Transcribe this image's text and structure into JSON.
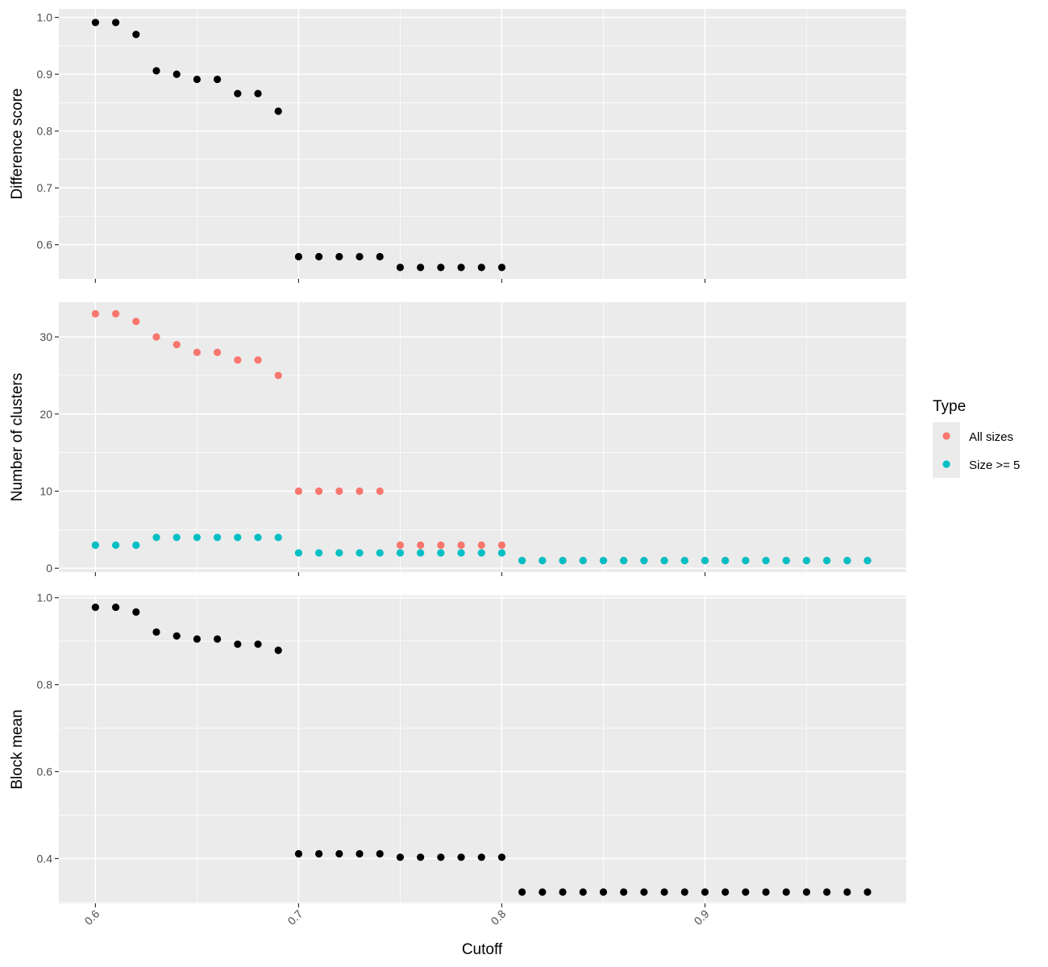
{
  "chart_data": {
    "type": "scatter",
    "xlabel": "Cutoff",
    "x_ticks": [
      "0.6",
      "0.7",
      "0.8",
      "0.9"
    ],
    "x_tick_values": [
      0.6,
      0.7,
      0.8,
      0.9
    ],
    "xlim": [
      0.582,
      0.999
    ],
    "colors": {
      "panel_bg": "#ebebeb",
      "grid": "#ffffff",
      "point_default": "#000000",
      "all_sizes": "#f8766d",
      "size_ge_5": "#00bfc4"
    },
    "legend": {
      "title": "Type",
      "position": "right",
      "items": [
        {
          "label": "All sizes",
          "color": "#f8766d"
        },
        {
          "label": "Size >= 5",
          "color": "#00bfc4"
        }
      ]
    },
    "panels": [
      {
        "ylabel": "Difference score",
        "ylim": [
          0.54,
          1.015
        ],
        "y_ticks": [
          "0.6",
          "0.7",
          "0.8",
          "0.9",
          "1.0"
        ],
        "y_tick_values": [
          0.6,
          0.7,
          0.8,
          0.9,
          1.0
        ],
        "y_minor": [
          0.65,
          0.75,
          0.85,
          0.95
        ],
        "series": [
          {
            "color": "#000000",
            "x": [
              0.6,
              0.61,
              0.62,
              0.63,
              0.64,
              0.65,
              0.66,
              0.67,
              0.68,
              0.69,
              0.7,
              0.71,
              0.72,
              0.73,
              0.74,
              0.75,
              0.76,
              0.77,
              0.78,
              0.79,
              0.8
            ],
            "y": [
              0.991,
              0.991,
              0.97,
              0.906,
              0.9,
              0.891,
              0.891,
              0.866,
              0.866,
              0.835,
              0.579,
              0.579,
              0.579,
              0.579,
              0.579,
              0.56,
              0.56,
              0.56,
              0.56,
              0.56,
              0.56
            ]
          }
        ]
      },
      {
        "ylabel": "Number of clusters",
        "ylim": [
          -0.5,
          34.5
        ],
        "y_ticks": [
          "0",
          "10",
          "20",
          "30"
        ],
        "y_tick_values": [
          0,
          10,
          20,
          30
        ],
        "y_minor": [
          5,
          15,
          25
        ],
        "series": [
          {
            "name": "All sizes",
            "color": "#f8766d",
            "x": [
              0.6,
              0.61,
              0.62,
              0.63,
              0.64,
              0.65,
              0.66,
              0.67,
              0.68,
              0.69,
              0.7,
              0.71,
              0.72,
              0.73,
              0.74,
              0.75,
              0.76,
              0.77,
              0.78,
              0.79,
              0.8,
              0.81,
              0.82,
              0.83,
              0.84,
              0.85,
              0.86,
              0.87,
              0.88,
              0.89,
              0.9,
              0.91,
              0.92,
              0.93,
              0.94,
              0.95,
              0.96,
              0.97,
              0.98
            ],
            "y": [
              33,
              33,
              32,
              30,
              29,
              28,
              28,
              27,
              27,
              25,
              10,
              10,
              10,
              10,
              10,
              3,
              3,
              3,
              3,
              3,
              3,
              1,
              1,
              1,
              1,
              1,
              1,
              1,
              1,
              1,
              1,
              1,
              1,
              1,
              1,
              1,
              1,
              1,
              1
            ]
          },
          {
            "name": "Size >= 5",
            "color": "#00bfc4",
            "x": [
              0.6,
              0.61,
              0.62,
              0.63,
              0.64,
              0.65,
              0.66,
              0.67,
              0.68,
              0.69,
              0.7,
              0.71,
              0.72,
              0.73,
              0.74,
              0.75,
              0.76,
              0.77,
              0.78,
              0.79,
              0.8,
              0.81,
              0.82,
              0.83,
              0.84,
              0.85,
              0.86,
              0.87,
              0.88,
              0.89,
              0.9,
              0.91,
              0.92,
              0.93,
              0.94,
              0.95,
              0.96,
              0.97,
              0.98
            ],
            "y": [
              3,
              3,
              3,
              4,
              4,
              4,
              4,
              4,
              4,
              4,
              2,
              2,
              2,
              2,
              2,
              2,
              2,
              2,
              2,
              2,
              2,
              1,
              1,
              1,
              1,
              1,
              1,
              1,
              1,
              1,
              1,
              1,
              1,
              1,
              1,
              1,
              1,
              1,
              1
            ]
          }
        ]
      },
      {
        "ylabel": "Block mean",
        "ylim": [
          0.297,
          1.005
        ],
        "y_ticks": [
          "0.4",
          "0.6",
          "0.8",
          "1.0"
        ],
        "y_tick_values": [
          0.4,
          0.6,
          0.8,
          1.0
        ],
        "y_minor": [
          0.3,
          0.5,
          0.7,
          0.9
        ],
        "series": [
          {
            "color": "#000000",
            "x": [
              0.6,
              0.61,
              0.62,
              0.63,
              0.64,
              0.65,
              0.66,
              0.67,
              0.68,
              0.69,
              0.7,
              0.71,
              0.72,
              0.73,
              0.74,
              0.75,
              0.76,
              0.77,
              0.78,
              0.79,
              0.8,
              0.81,
              0.82,
              0.83,
              0.84,
              0.85,
              0.86,
              0.87,
              0.88,
              0.89,
              0.9,
              0.91,
              0.92,
              0.93,
              0.94,
              0.95,
              0.96,
              0.97,
              0.98
            ],
            "y": [
              0.978,
              0.978,
              0.967,
              0.921,
              0.912,
              0.905,
              0.905,
              0.893,
              0.893,
              0.879,
              0.411,
              0.411,
              0.411,
              0.411,
              0.411,
              0.403,
              0.403,
              0.403,
              0.403,
              0.403,
              0.403,
              0.323,
              0.323,
              0.323,
              0.323,
              0.323,
              0.323,
              0.323,
              0.323,
              0.323,
              0.323,
              0.323,
              0.323,
              0.323,
              0.323,
              0.323,
              0.323,
              0.323,
              0.323
            ]
          }
        ]
      }
    ]
  }
}
